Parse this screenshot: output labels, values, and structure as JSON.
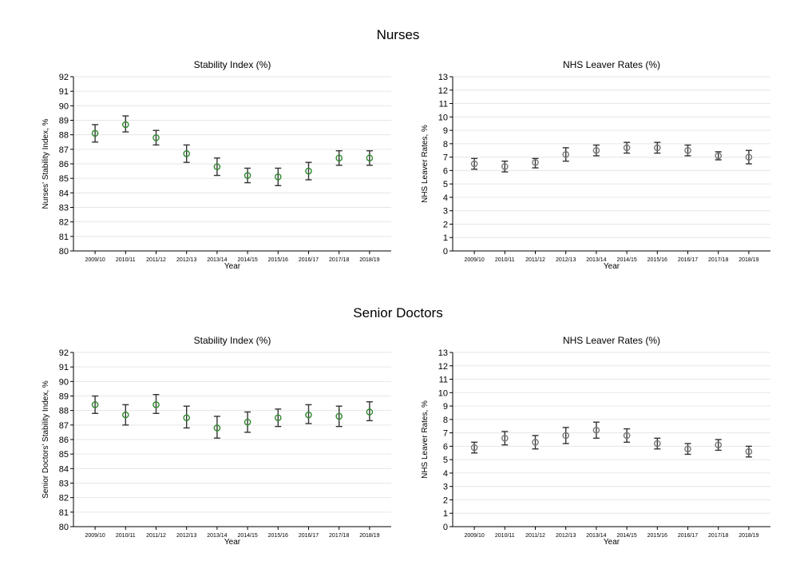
{
  "sections": [
    {
      "title": "Nurses"
    },
    {
      "title": "Senior Doctors"
    }
  ],
  "chart_data": [
    {
      "type": "scatter",
      "section": "Nurses",
      "title": "Stability Index (%)",
      "xlabel": "Year",
      "ylabel": "Nurses' Stability Index, %",
      "categories": [
        "2009/10",
        "2010/11",
        "2011/12",
        "2012/13",
        "2013/14",
        "2014/15",
        "2015/16",
        "2016/17",
        "2017/18",
        "2018/19"
      ],
      "values": [
        88.1,
        88.7,
        87.8,
        86.7,
        85.8,
        85.2,
        85.1,
        85.5,
        86.4,
        86.4
      ],
      "ci_low": [
        87.5,
        88.2,
        87.3,
        86.1,
        85.2,
        84.7,
        84.5,
        84.9,
        85.9,
        85.9
      ],
      "ci_high": [
        88.7,
        89.3,
        88.3,
        87.3,
        86.4,
        85.7,
        85.7,
        86.1,
        86.9,
        86.9
      ],
      "ylim": [
        80,
        92
      ],
      "yticks": [
        80,
        81,
        82,
        83,
        84,
        85,
        86,
        87,
        88,
        89,
        90,
        91,
        92
      ],
      "grid": true,
      "marker_color": "#2e8b2e"
    },
    {
      "type": "scatter",
      "section": "Nurses",
      "title": "NHS Leaver Rates (%)",
      "xlabel": "Year",
      "ylabel": "NHS Leaver Rates, %",
      "categories": [
        "2009/10",
        "2010/11",
        "2011/12",
        "2012/13",
        "2013/14",
        "2014/15",
        "2015/16",
        "2016/17",
        "2017/18",
        "2018/19"
      ],
      "values": [
        6.5,
        6.3,
        6.6,
        7.2,
        7.5,
        7.7,
        7.7,
        7.5,
        7.1,
        7.0
      ],
      "ci_low": [
        6.1,
        5.9,
        6.2,
        6.7,
        7.1,
        7.3,
        7.3,
        7.1,
        6.8,
        6.5
      ],
      "ci_high": [
        6.9,
        6.7,
        6.9,
        7.7,
        7.9,
        8.1,
        8.1,
        7.9,
        7.4,
        7.5
      ],
      "ylim": [
        0,
        13
      ],
      "yticks": [
        0,
        1,
        2,
        3,
        4,
        5,
        6,
        7,
        8,
        9,
        10,
        11,
        12,
        13
      ],
      "grid": true,
      "marker_color": "#777777"
    },
    {
      "type": "scatter",
      "section": "Senior Doctors",
      "title": "Stability Index (%)",
      "xlabel": "Year",
      "ylabel": "Senior Doctors' Stability Index, %",
      "categories": [
        "2009/10",
        "2010/11",
        "2011/12",
        "2012/13",
        "2013/14",
        "2014/15",
        "2015/16",
        "2016/17",
        "2017/18",
        "2018/19"
      ],
      "values": [
        88.4,
        87.7,
        88.4,
        87.5,
        86.8,
        87.2,
        87.5,
        87.7,
        87.6,
        87.9
      ],
      "ci_low": [
        87.8,
        87.0,
        87.8,
        86.8,
        86.1,
        86.5,
        86.9,
        87.1,
        86.9,
        87.3
      ],
      "ci_high": [
        89.0,
        88.4,
        89.1,
        88.3,
        87.6,
        87.9,
        88.1,
        88.4,
        88.3,
        88.6
      ],
      "ylim": [
        80,
        92
      ],
      "yticks": [
        80,
        81,
        82,
        83,
        84,
        85,
        86,
        87,
        88,
        89,
        90,
        91,
        92
      ],
      "grid": true,
      "marker_color": "#2e8b2e"
    },
    {
      "type": "scatter",
      "section": "Senior Doctors",
      "title": "NHS Leaver Rates (%)",
      "xlabel": "Year",
      "ylabel": "NHS Leaver Rates, %",
      "categories": [
        "2009/10",
        "2010/11",
        "2011/12",
        "2012/13",
        "2013/14",
        "2014/15",
        "2015/16",
        "2016/17",
        "2017/18",
        "2018/19"
      ],
      "values": [
        5.9,
        6.6,
        6.3,
        6.8,
        7.2,
        6.8,
        6.2,
        5.8,
        6.1,
        5.6
      ],
      "ci_low": [
        5.5,
        6.1,
        5.8,
        6.2,
        6.6,
        6.3,
        5.8,
        5.4,
        5.7,
        5.2
      ],
      "ci_high": [
        6.3,
        7.1,
        6.8,
        7.4,
        7.8,
        7.3,
        6.6,
        6.2,
        6.5,
        6.0
      ],
      "ylim": [
        0,
        13
      ],
      "yticks": [
        0,
        1,
        2,
        3,
        4,
        5,
        6,
        7,
        8,
        9,
        10,
        11,
        12,
        13
      ],
      "grid": true,
      "marker_color": "#777777"
    }
  ]
}
